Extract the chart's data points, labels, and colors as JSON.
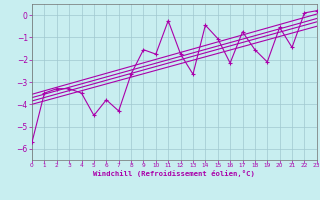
{
  "xlabel": "Windchill (Refroidissement éolien,°C)",
  "bg_color": "#c8eef0",
  "grid_color": "#a0c8d0",
  "line_color": "#aa00aa",
  "xlim": [
    0,
    23
  ],
  "ylim": [
    -6.5,
    0.5
  ],
  "yticks": [
    0,
    -1,
    -2,
    -3,
    -4,
    -5,
    -6
  ],
  "xticks": [
    0,
    1,
    2,
    3,
    4,
    5,
    6,
    7,
    8,
    9,
    10,
    11,
    12,
    13,
    14,
    15,
    16,
    17,
    18,
    19,
    20,
    21,
    22,
    23
  ],
  "main_line_x": [
    0,
    1,
    2,
    3,
    4,
    5,
    6,
    7,
    8,
    9,
    10,
    11,
    12,
    13,
    14,
    15,
    16,
    17,
    18,
    19,
    20,
    21,
    22,
    23
  ],
  "main_line_y": [
    -5.7,
    -3.5,
    -3.3,
    -3.3,
    -3.5,
    -4.5,
    -3.8,
    -4.3,
    -2.65,
    -1.55,
    -1.75,
    -0.25,
    -1.75,
    -2.65,
    -0.45,
    -1.05,
    -2.15,
    -0.75,
    -1.55,
    -2.1,
    -0.55,
    -1.45,
    0.1,
    0.2
  ],
  "trend_lines": [
    {
      "x": [
        0,
        23
      ],
      "y": [
        -3.55,
        0.05
      ]
    },
    {
      "x": [
        0,
        23
      ],
      "y": [
        -3.7,
        -0.15
      ]
    },
    {
      "x": [
        0,
        23
      ],
      "y": [
        -3.85,
        -0.3
      ]
    },
    {
      "x": [
        0,
        23
      ],
      "y": [
        -4.0,
        -0.5
      ]
    }
  ]
}
